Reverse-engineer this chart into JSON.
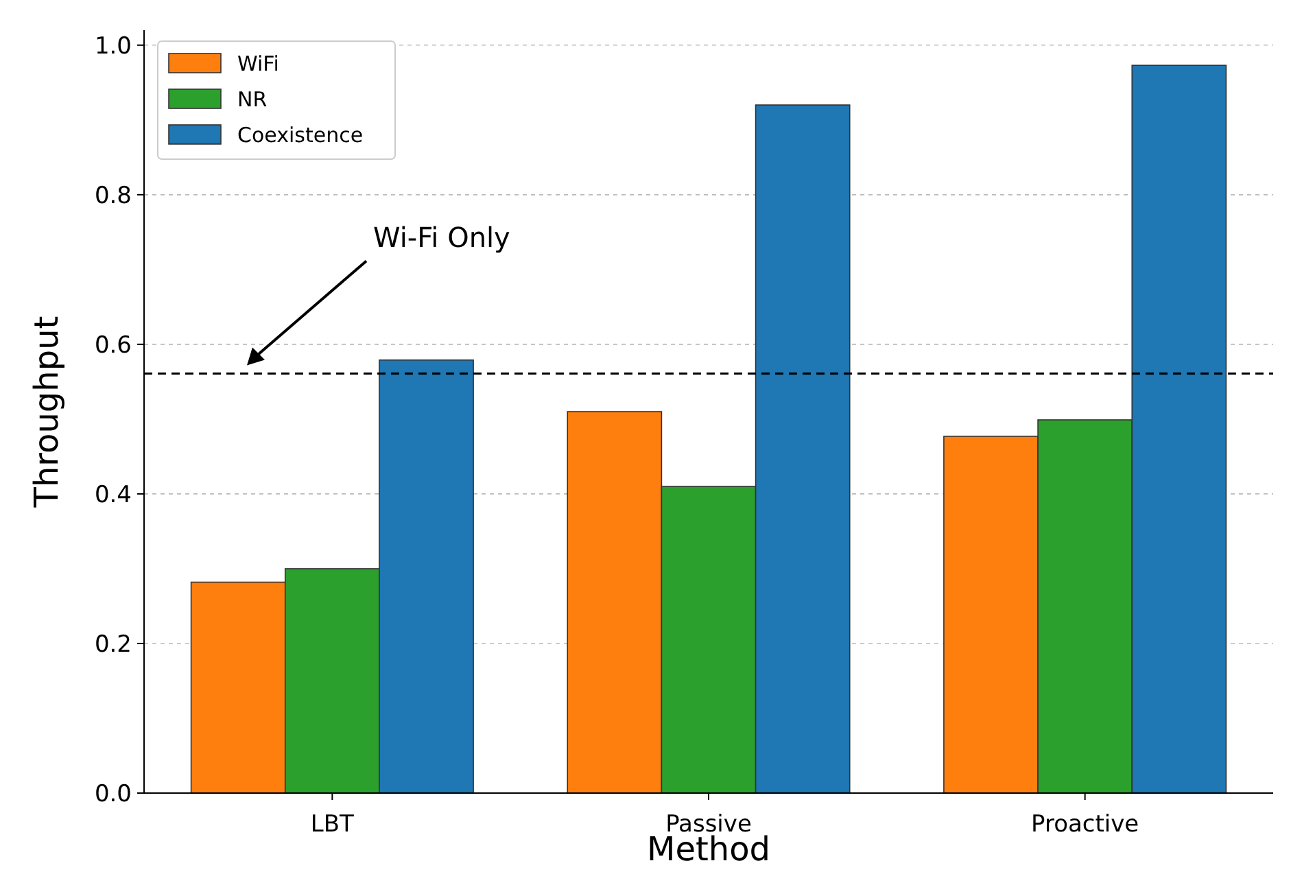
{
  "chart_data": {
    "type": "bar",
    "xlabel": "Method",
    "ylabel": "Throughput",
    "categories": [
      "LBT",
      "Passive",
      "Proactive"
    ],
    "series": [
      {
        "name": "WiFi",
        "color": "#ff7f0e",
        "values": [
          0.282,
          0.51,
          0.477
        ]
      },
      {
        "name": "NR",
        "color": "#2ca02c",
        "values": [
          0.3,
          0.41,
          0.499
        ]
      },
      {
        "name": "Coexistence",
        "color": "#1f77b4",
        "values": [
          0.579,
          0.92,
          0.973
        ]
      }
    ],
    "ylim": [
      0,
      1.02
    ],
    "yticks": [
      {
        "value": 0,
        "label": "0.0"
      },
      {
        "value": 0.2,
        "label": "0.2"
      },
      {
        "value": 0.4,
        "label": "0.4"
      },
      {
        "value": 0.6,
        "label": "0.6"
      },
      {
        "value": 0.8,
        "label": "0.8"
      },
      {
        "value": 1,
        "label": "1.0"
      }
    ],
    "grid": "y",
    "legend": "top left",
    "annotations": [
      "Wi-Fi Only"
    ],
    "ref_lines": [
      {
        "axis": "y",
        "value": 0.561,
        "color": "#000000",
        "line_style": "dashed"
      }
    ]
  }
}
